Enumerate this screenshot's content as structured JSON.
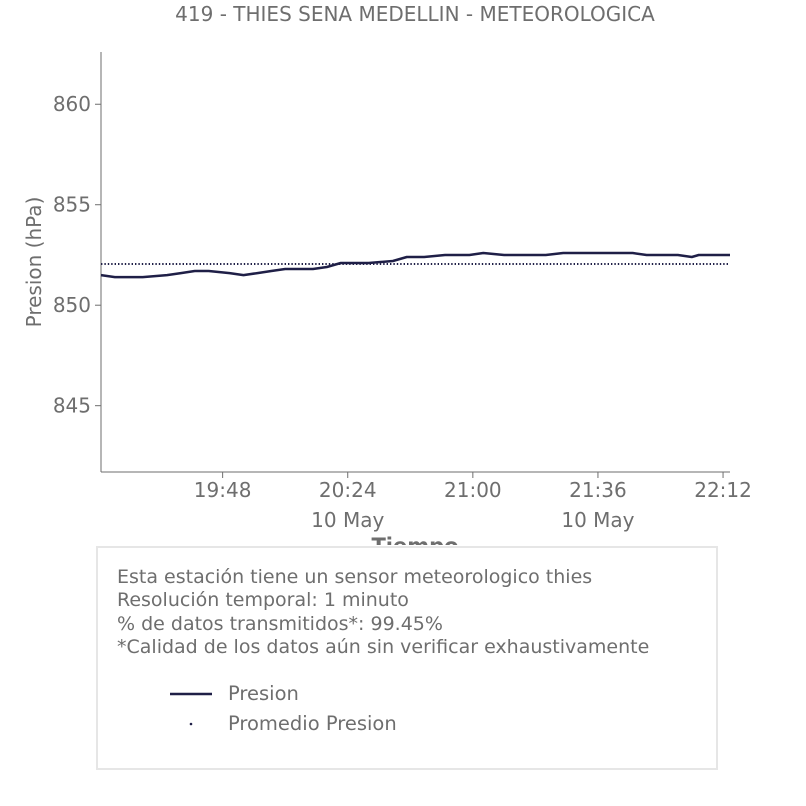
{
  "chart_data": {
    "type": "line",
    "title": "419 - THIES SENA MEDELLIN - METEOROLOGICA",
    "xlabel": "Tiempo",
    "ylabel": "Presion (hPa)",
    "x_range": [
      "19:13",
      "22:14"
    ],
    "ylim": [
      841.7,
      862.6
    ],
    "yticks": [
      845,
      850,
      855,
      860
    ],
    "xticks": [
      {
        "time": "19:48",
        "label": "19:48",
        "sublabel": ""
      },
      {
        "time": "20:24",
        "label": "20:24",
        "sublabel": "10 May"
      },
      {
        "time": "21:00",
        "label": "21:00",
        "sublabel": ""
      },
      {
        "time": "21:36",
        "label": "21:36",
        "sublabel": "10 May"
      },
      {
        "time": "22:12",
        "label": "22:12",
        "sublabel": ""
      }
    ],
    "grid": false,
    "series": [
      {
        "name": "Presion",
        "color": "#1f1f47",
        "style": "solid",
        "x": [
          "19:13",
          "19:17",
          "19:25",
          "19:32",
          "19:36",
          "19:40",
          "19:44",
          "19:50",
          "19:54",
          "19:58",
          "20:02",
          "20:06",
          "20:10",
          "20:14",
          "20:18",
          "20:20",
          "20:22",
          "20:24",
          "20:27",
          "20:30",
          "20:37",
          "20:41",
          "20:46",
          "20:52",
          "20:56",
          "20:59",
          "21:03",
          "21:09",
          "21:13",
          "21:21",
          "21:26",
          "21:30",
          "21:34",
          "21:38",
          "21:42",
          "21:46",
          "21:50",
          "21:55",
          "21:59",
          "22:03",
          "22:05",
          "22:08",
          "22:12",
          "22:14"
        ],
        "y": [
          851.5,
          851.4,
          851.4,
          851.5,
          851.6,
          851.7,
          851.7,
          851.6,
          851.5,
          851.6,
          851.7,
          851.8,
          851.8,
          851.8,
          851.9,
          852.0,
          852.1,
          852.1,
          852.1,
          852.1,
          852.2,
          852.4,
          852.4,
          852.5,
          852.5,
          852.5,
          852.6,
          852.5,
          852.5,
          852.5,
          852.6,
          852.6,
          852.6,
          852.6,
          852.6,
          852.6,
          852.5,
          852.5,
          852.5,
          852.4,
          852.5,
          852.5,
          852.5,
          852.5
        ]
      },
      {
        "name": "Promedio Presion",
        "color": "#1f1f47",
        "style": "dotted",
        "x": [
          "19:13",
          "22:14"
        ],
        "y": [
          852.05,
          852.05
        ]
      }
    ],
    "legend_position": "bottom"
  },
  "info": {
    "line1": "Esta estación tiene un sensor meteorologico thies",
    "line2": "Resolución temporal: 1 minuto",
    "line3": "% de datos transmitidos*: 99.45%",
    "line4": "*Calidad de los datos aún sin verificar exhaustivamente"
  },
  "legend": {
    "item1": "Presion",
    "item2": "Promedio Presion"
  }
}
